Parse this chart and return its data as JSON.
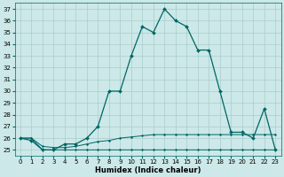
{
  "xlabel": "Humidex (Indice chaleur)",
  "bg_color": "#cce8e8",
  "grid_color": "#aacccc",
  "line_color": "#006666",
  "xlim": [
    -0.5,
    23.5
  ],
  "ylim": [
    24.5,
    37.5
  ],
  "yticks": [
    25,
    26,
    27,
    28,
    29,
    30,
    31,
    32,
    33,
    34,
    35,
    36,
    37
  ],
  "xticks": [
    0,
    1,
    2,
    3,
    4,
    5,
    6,
    7,
    8,
    9,
    10,
    11,
    12,
    13,
    14,
    15,
    16,
    17,
    18,
    19,
    20,
    21,
    22,
    23
  ],
  "hours": [
    0,
    1,
    2,
    3,
    4,
    5,
    6,
    7,
    8,
    9,
    10,
    11,
    12,
    13,
    14,
    15,
    16,
    17,
    18,
    19,
    20,
    21,
    22,
    23
  ],
  "humidex_main": [
    26,
    25.8,
    25,
    25,
    25.5,
    25.5,
    26,
    27,
    30,
    30,
    33,
    35.5,
    35,
    37,
    36,
    35.5,
    33.5,
    33.5,
    30,
    26.5,
    26.5,
    26,
    28.5,
    25
  ],
  "humidex_flat1": [
    26,
    26,
    25,
    25,
    25,
    25,
    25,
    25,
    25,
    25,
    25,
    25,
    25,
    25,
    25,
    25,
    25,
    25,
    25,
    25,
    25,
    25,
    25,
    25
  ],
  "humidex_flat2": [
    26,
    26,
    25.3,
    25.2,
    25.2,
    25.3,
    25.5,
    25.7,
    25.8,
    26.0,
    26.1,
    26.2,
    26.3,
    26.3,
    26.3,
    26.3,
    26.3,
    26.3,
    26.3,
    26.3,
    26.3,
    26.3,
    26.3,
    26.3
  ]
}
